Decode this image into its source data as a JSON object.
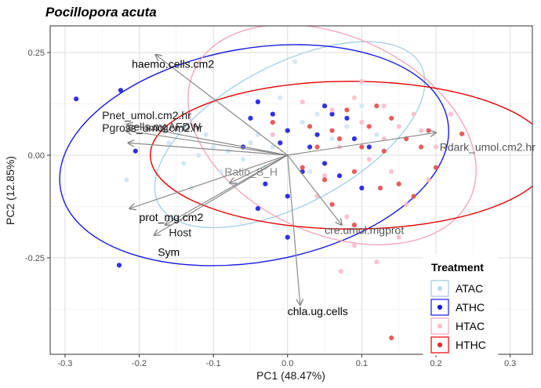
{
  "chart_data": {
    "type": "scatter",
    "title": "Pocillopora acuta",
    "xlabel": "PC1 (48.47%)",
    "ylabel": "PC2 (12.85%)",
    "xlim": [
      -0.32,
      0.33
    ],
    "ylim": [
      -0.485,
      0.315
    ],
    "xticks": [
      -0.3,
      -0.2,
      -0.1,
      0.0,
      0.1,
      0.2,
      0.3
    ],
    "xtick_labels": [
      "-0.3",
      "-0.2",
      "-0.1",
      "0.0",
      "0.1",
      "0.2",
      "0.3"
    ],
    "yticks": [
      0.25,
      0.0,
      -0.25
    ],
    "ytick_labels": [
      "0.25",
      "0.00",
      "-0.25"
    ],
    "grid": true,
    "legend": {
      "title": "Treatment",
      "position": "bottom-right",
      "entries": [
        {
          "label": "ATAC",
          "color": "#b8dbe8",
          "border": "#9ccbdc"
        },
        {
          "label": "ATHC",
          "color": "#1a1ae6",
          "border": "#1a1ae6"
        },
        {
          "label": "HTAC",
          "color": "#ffc0cb",
          "border": "#f4a7b9"
        },
        {
          "label": "HTHC",
          "color": "#e63030",
          "border": "#e60000"
        }
      ]
    },
    "ellipses": [
      {
        "group": "ATAC",
        "color": "#a7d3e2",
        "cx": 0.003,
        "cy": 0.05,
        "rx": 0.2,
        "ry": 0.17,
        "angle_deg": -28
      },
      {
        "group": "ATHC",
        "color": "#1a1ae6",
        "cx": -0.045,
        "cy": 0.0,
        "rx": 0.265,
        "ry": 0.26,
        "angle_deg": -10
      },
      {
        "group": "HTAC",
        "color": "#f4a7b9",
        "cx": 0.06,
        "cy": 0.05,
        "rx": 0.205,
        "ry": 0.24,
        "angle_deg": 25
      },
      {
        "group": "HTHC",
        "color": "#e60000",
        "cx": 0.085,
        "cy": 0.0,
        "rx": 0.27,
        "ry": 0.18,
        "angle_deg": 0
      }
    ],
    "loadings": [
      {
        "name": "haemo.cells.cm2",
        "x": -0.178,
        "y": 0.245,
        "lx": -0.21,
        "ly": 0.213,
        "color": "#000000"
      },
      {
        "name": "Pnet_umol.cm2.hr",
        "x": -0.217,
        "y": 0.075,
        "lx": -0.25,
        "ly": 0.088,
        "color": "#1a1a1a"
      },
      {
        "name": "Pgross_umol.cm2.hr",
        "x": -0.218,
        "y": 0.06,
        "lx": -0.25,
        "ly": 0.057,
        "color": "#1a1a1a"
      },
      {
        "name": "cells.mgAFDW",
        "x": -0.215,
        "y": 0.03,
        "lx": -0.215,
        "ly": 0.06,
        "color": "#333333"
      },
      {
        "name": "Rdark_umol.cm2.hr",
        "x": 0.2,
        "y": 0.055,
        "lx": 0.205,
        "ly": 0.01,
        "color": "#555555"
      },
      {
        "name": "prot_mg.cm2",
        "x": -0.213,
        "y": -0.13,
        "lx": -0.2,
        "ly": -0.16,
        "color": "#000000"
      },
      {
        "name": "Host",
        "x": -0.165,
        "y": -0.17,
        "lx": -0.16,
        "ly": -0.198,
        "color": "#222222"
      },
      {
        "name": "Sym",
        "x": -0.18,
        "y": -0.195,
        "lx": -0.175,
        "ly": -0.245,
        "color": "#000000"
      },
      {
        "name": "Ratio_S_H",
        "x": -0.078,
        "y": -0.068,
        "lx": -0.085,
        "ly": -0.05,
        "color": "#888888"
      },
      {
        "name": "cre.umol.mgprot",
        "x": 0.073,
        "y": -0.17,
        "lx": 0.05,
        "ly": -0.192,
        "color": "#555555"
      },
      {
        "name": "chla.ug.cells",
        "x": 0.017,
        "y": -0.365,
        "lx": 0.0,
        "ly": -0.39,
        "color": "#000000"
      }
    ],
    "series": [
      {
        "name": "ATAC",
        "color": "#cfe6ef",
        "points": [
          [
            0.01,
            0.228
          ],
          [
            -0.217,
            -0.06
          ],
          [
            -0.14,
            -0.02
          ],
          [
            -0.12,
            0.0
          ],
          [
            -0.1,
            0.02
          ],
          [
            -0.08,
            0.01
          ],
          [
            -0.06,
            -0.01
          ],
          [
            -0.05,
            0.03
          ],
          [
            -0.04,
            0.05
          ],
          [
            -0.03,
            -0.03
          ],
          [
            -0.02,
            0.02
          ],
          [
            0.0,
            0.06
          ],
          [
            0.02,
            0.08
          ],
          [
            0.04,
            0.1
          ],
          [
            0.06,
            0.04
          ],
          [
            0.08,
            0.07
          ],
          [
            -0.09,
            -0.04
          ],
          [
            -0.11,
            0.05
          ],
          [
            -0.13,
            -0.08
          ],
          [
            -0.07,
            -0.07
          ],
          [
            0.03,
            -0.04
          ],
          [
            -0.16,
            0.03
          ],
          [
            0.1,
            0.12
          ],
          [
            -0.01,
            0.14
          ],
          [
            0.12,
            0.05
          ]
        ]
      },
      {
        "name": "ATHC",
        "color": "#1a1ae6",
        "points": [
          [
            -0.285,
            0.137
          ],
          [
            -0.225,
            0.158
          ],
          [
            -0.227,
            -0.268
          ],
          [
            -0.205,
            0.01
          ],
          [
            -0.04,
            0.13
          ],
          [
            0.0,
            0.06
          ],
          [
            -0.01,
            0.03
          ],
          [
            0.05,
            -0.02
          ],
          [
            0.02,
            -0.04
          ],
          [
            -0.03,
            -0.07
          ],
          [
            0.06,
            0.1
          ],
          [
            0.09,
            0.04
          ],
          [
            -0.05,
            0.09
          ],
          [
            0.0,
            -0.1
          ],
          [
            0.04,
            0.05
          ],
          [
            -0.02,
            0.1
          ],
          [
            0.07,
            -0.05
          ],
          [
            0.03,
            0.02
          ],
          [
            -0.0,
            -0.2
          ],
          [
            0.1,
            -0.08
          ],
          [
            0.11,
            0.02
          ],
          [
            -0.06,
            0.02
          ],
          [
            -0.04,
            -0.13
          ],
          [
            0.08,
            0.09
          ],
          [
            0.05,
            0.12
          ]
        ]
      },
      {
        "name": "HTAC",
        "color": "#f8bccb",
        "points": [
          [
            0.072,
            -0.283
          ],
          [
            0.12,
            -0.26
          ],
          [
            0.15,
            -0.2
          ],
          [
            0.09,
            0.14
          ],
          [
            0.1,
            0.08
          ],
          [
            0.13,
            0.12
          ],
          [
            0.18,
            0.06
          ],
          [
            0.05,
            -0.05
          ],
          [
            0.2,
            0.02
          ],
          [
            0.16,
            -0.12
          ],
          [
            0.07,
            0.02
          ],
          [
            0.11,
            -0.01
          ],
          [
            0.02,
            0.13
          ],
          [
            0.04,
            -0.1
          ],
          [
            0.13,
            0.04
          ],
          [
            0.17,
            0.1
          ],
          [
            0.08,
            -0.15
          ],
          [
            0.06,
            0.11
          ],
          [
            0.19,
            -0.06
          ],
          [
            0.15,
            0.07
          ],
          [
            -0.02,
            0.05
          ],
          [
            0.22,
            0.1
          ],
          [
            0.1,
            0.18
          ],
          [
            0.14,
            -0.04
          ],
          [
            0.09,
            -0.22
          ]
        ]
      },
      {
        "name": "HTHC",
        "color": "#e84a4a",
        "points": [
          [
            0.235,
            0.052
          ],
          [
            0.14,
            -0.445
          ],
          [
            0.125,
            -0.08
          ],
          [
            0.09,
            -0.17
          ],
          [
            0.06,
            0.06
          ],
          [
            0.1,
            0.02
          ],
          [
            0.13,
            0.01
          ],
          [
            0.16,
            0.04
          ],
          [
            0.2,
            -0.03
          ],
          [
            0.08,
            0.11
          ],
          [
            0.04,
            0.02
          ],
          [
            0.11,
            0.07
          ],
          [
            0.15,
            -0.07
          ],
          [
            0.05,
            -0.06
          ],
          [
            0.12,
            0.12
          ],
          [
            0.18,
            0.02
          ],
          [
            0.07,
            0.04
          ],
          [
            0.03,
            0.07
          ],
          [
            -0.02,
            0.08
          ],
          [
            0.09,
            -0.04
          ],
          [
            0.17,
            -0.1
          ],
          [
            0.14,
            0.09
          ],
          [
            0.06,
            -0.12
          ],
          [
            0.19,
            0.06
          ],
          [
            0.02,
            -0.03
          ]
        ]
      }
    ]
  }
}
